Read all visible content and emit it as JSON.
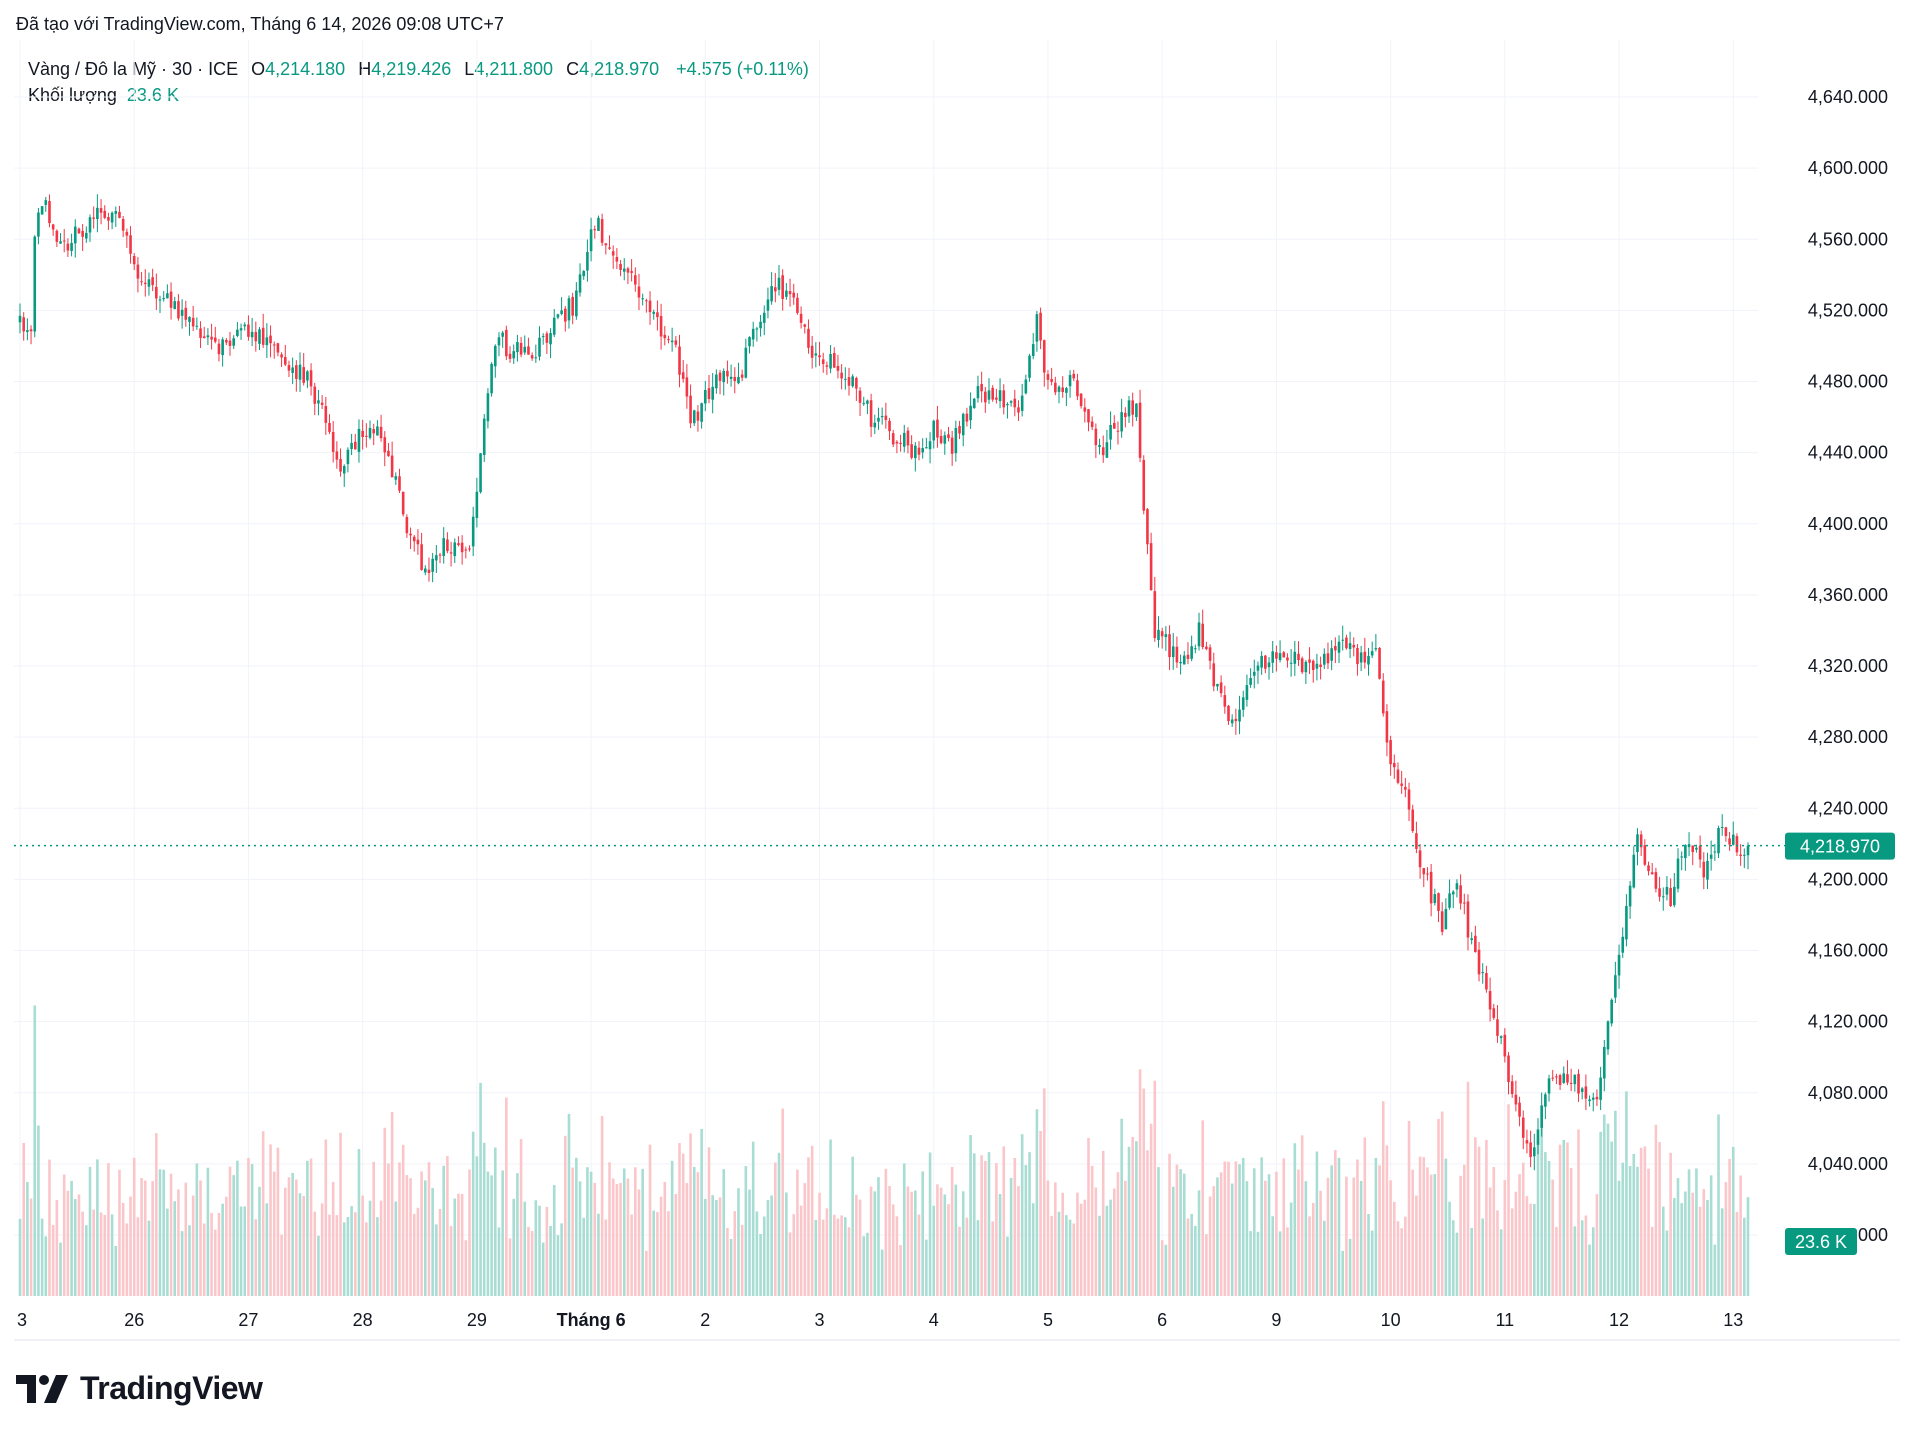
{
  "caption": "Đã tạo với TradingView.com, Tháng 6 14, 2026 09:08 UTC+7",
  "legend": {
    "symbol": "Vàng / Đô la Mỹ · 30 · ICE",
    "open_label": "O",
    "open": "4,214.180",
    "high_label": "H",
    "high": "4,219.426",
    "low_label": "L",
    "low": "4,211.800",
    "close_label": "C",
    "close": "4,218.970",
    "change": "+4.575 (+0.11%)",
    "volume_label": "Khối lượng",
    "volume_value": "23.6 K"
  },
  "colors": {
    "up": "#089981",
    "down": "#f23645",
    "up_volume": "#a8ddd4",
    "down_volume": "#fbc6ca",
    "grid": "#f0f3fa"
  },
  "logo": {
    "text": "TradingView",
    "icon": "tradingview-logo-icon"
  },
  "chart_data": {
    "type": "candlestick",
    "y_axis": {
      "range": [
        4000,
        4660
      ],
      "ticks": [
        "4,640.000",
        "4,600.000",
        "4,560.000",
        "4,520.000",
        "4,480.000",
        "4,440.000",
        "4,400.000",
        "4,360.000",
        "4,320.000",
        "4,280.000",
        "4,240.000",
        "4,200.000",
        "4,160.000",
        "4,120.000",
        "4,080.000",
        "4,040.000",
        "4,000.000"
      ],
      "tick_values": [
        4640,
        4600,
        4560,
        4520,
        4480,
        4440,
        4400,
        4360,
        4320,
        4280,
        4240,
        4200,
        4160,
        4120,
        4080,
        4040,
        4000
      ]
    },
    "x_axis": {
      "labels": [
        {
          "text": "3",
          "bar": 0
        },
        {
          "text": "26",
          "bar": 31
        },
        {
          "text": "27",
          "bar": 62
        },
        {
          "text": "28",
          "bar": 93
        },
        {
          "text": "29",
          "bar": 124
        },
        {
          "text": "Tháng 6",
          "bar": 155,
          "bold": true
        },
        {
          "text": "2",
          "bar": 186
        },
        {
          "text": "3",
          "bar": 217
        },
        {
          "text": "4",
          "bar": 248
        },
        {
          "text": "5",
          "bar": 279
        },
        {
          "text": "6",
          "bar": 310
        },
        {
          "text": "9",
          "bar": 341
        },
        {
          "text": "10",
          "bar": 372
        },
        {
          "text": "11",
          "bar": 403
        },
        {
          "text": "12",
          "bar": 434
        },
        {
          "text": "13",
          "bar": 465
        }
      ]
    },
    "last_price": 4218.97,
    "last_price_label": "4,218.970",
    "last_volume_label": "23.6 K",
    "path_points": [
      [
        0,
        4513
      ],
      [
        3,
        4508
      ],
      [
        4,
        4566
      ],
      [
        7,
        4577
      ],
      [
        12,
        4556
      ],
      [
        16,
        4566
      ],
      [
        21,
        4572
      ],
      [
        27,
        4573
      ],
      [
        32,
        4540
      ],
      [
        40,
        4528
      ],
      [
        50,
        4505
      ],
      [
        55,
        4500
      ],
      [
        63,
        4510
      ],
      [
        70,
        4492
      ],
      [
        78,
        4482
      ],
      [
        84,
        4452
      ],
      [
        87,
        4430
      ],
      [
        90,
        4445
      ],
      [
        96,
        4453
      ],
      [
        101,
        4432
      ],
      [
        105,
        4395
      ],
      [
        110,
        4375
      ],
      [
        114,
        4385
      ],
      [
        118,
        4390
      ],
      [
        122,
        4380
      ],
      [
        125,
        4440
      ],
      [
        129,
        4505
      ],
      [
        134,
        4497
      ],
      [
        139,
        4495
      ],
      [
        144,
        4510
      ],
      [
        150,
        4523
      ],
      [
        156,
        4570
      ],
      [
        160,
        4558
      ],
      [
        165,
        4540
      ],
      [
        172,
        4515
      ],
      [
        178,
        4500
      ],
      [
        182,
        4455
      ],
      [
        188,
        4480
      ],
      [
        195,
        4482
      ],
      [
        201,
        4518
      ],
      [
        205,
        4535
      ],
      [
        211,
        4520
      ],
      [
        215,
        4498
      ],
      [
        221,
        4490
      ],
      [
        226,
        4480
      ],
      [
        231,
        4460
      ],
      [
        236,
        4452
      ],
      [
        243,
        4440
      ],
      [
        248,
        4455
      ],
      [
        253,
        4445
      ],
      [
        260,
        4475
      ],
      [
        266,
        4470
      ],
      [
        272,
        4468
      ],
      [
        276,
        4513
      ],
      [
        279,
        4480
      ],
      [
        286,
        4478
      ],
      [
        293,
        4440
      ],
      [
        300,
        4465
      ],
      [
        303,
        4466
      ],
      [
        305,
        4405
      ],
      [
        308,
        4340
      ],
      [
        316,
        4320
      ],
      [
        320,
        4340
      ],
      [
        324,
        4310
      ],
      [
        330,
        4285
      ],
      [
        336,
        4322
      ],
      [
        343,
        4330
      ],
      [
        351,
        4315
      ],
      [
        358,
        4332
      ],
      [
        364,
        4325
      ],
      [
        368,
        4330
      ],
      [
        371,
        4275
      ],
      [
        376,
        4250
      ],
      [
        380,
        4210
      ],
      [
        386,
        4175
      ],
      [
        390,
        4200
      ],
      [
        394,
        4162
      ],
      [
        399,
        4130
      ],
      [
        403,
        4100
      ],
      [
        410,
        4040
      ],
      [
        415,
        4090
      ],
      [
        420,
        4090
      ],
      [
        428,
        4078
      ],
      [
        430,
        4110
      ],
      [
        434,
        4160
      ],
      [
        439,
        4225
      ],
      [
        443,
        4200
      ],
      [
        448,
        4190
      ],
      [
        452,
        4222
      ],
      [
        457,
        4205
      ],
      [
        461,
        4225
      ],
      [
        466,
        4218
      ]
    ],
    "bars_count": 470,
    "candle_count_note": "30-minute candles; bars 0–469"
  }
}
